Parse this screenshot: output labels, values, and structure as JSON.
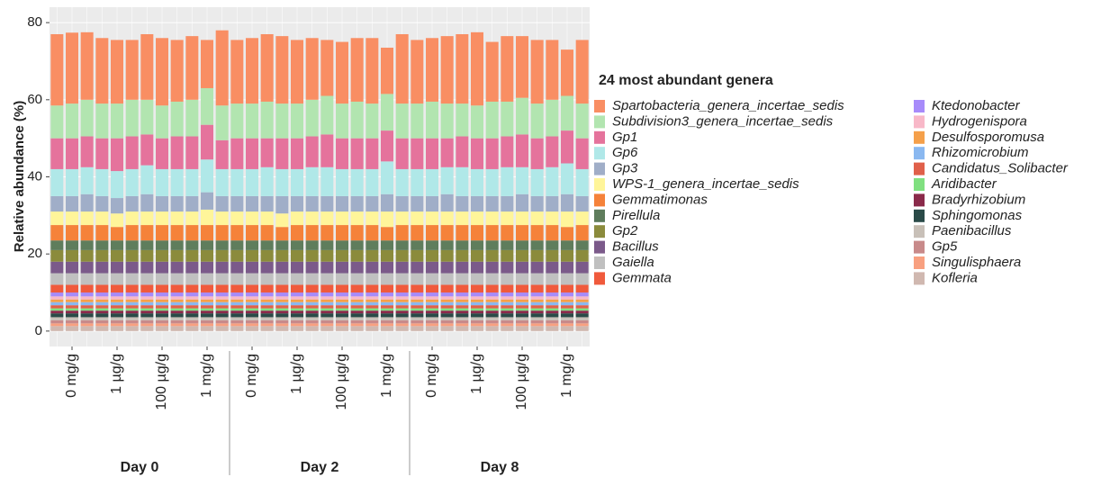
{
  "chart_data": {
    "type": "stacked_bar",
    "y_label": "Relative abundance (%)",
    "legend_title": "24 most abundant genera",
    "categories": [
      null,
      "0 mg/g",
      null,
      null,
      "1 µg/g",
      null,
      null,
      "100 µg/g",
      null,
      null,
      "1 mg/g",
      null,
      null,
      "0 mg/g",
      null,
      null,
      "1 µg/g",
      null,
      null,
      "100 µg/g",
      null,
      null,
      "1 mg/g",
      null,
      null,
      "0 mg/g",
      null,
      null,
      "1 µg/g",
      null,
      null,
      "100 µg/g",
      null,
      null,
      "1 mg/g",
      null
    ],
    "groups": [
      "Day 0",
      "Day 2",
      "Day 8"
    ],
    "ylim": [
      -4,
      84
    ],
    "yticks": [
      0,
      20,
      40,
      60,
      80
    ],
    "grid": true,
    "series": [
      {
        "name": "Spartobacteria_genera_incertae_sedis",
        "color": "#f98e63",
        "values": [
          18.5,
          18.4,
          17.5,
          17,
          16.5,
          15.5,
          17,
          17.5,
          16,
          16.5,
          12.5,
          19.5,
          16.5,
          17,
          17.5,
          17.5,
          16.5,
          16,
          14.5,
          16,
          16.5,
          17,
          12,
          18,
          16.5,
          16.5,
          17.5,
          18,
          19,
          15.5,
          17,
          16,
          16.5,
          15.5,
          12,
          16.5
        ]
      },
      {
        "name": "Subdivision3_genera_incertae_sedis",
        "color": "#b2e5b0",
        "values": [
          8.5,
          9,
          9.5,
          9,
          9,
          9.5,
          9,
          8.5,
          9,
          9.5,
          9.5,
          9,
          9,
          9,
          9.5,
          9,
          9,
          9.5,
          10,
          9,
          9.5,
          9,
          9.5,
          9,
          9,
          9.5,
          9,
          8.5,
          8.5,
          9.5,
          9,
          9.5,
          9,
          9.5,
          9,
          9
        ]
      },
      {
        "name": "Gp1",
        "color": "#e5739c",
        "values": [
          8,
          8,
          8,
          8,
          8.5,
          8.5,
          8,
          8,
          8.5,
          8.5,
          9,
          7.5,
          8,
          8,
          7.5,
          8,
          8,
          8,
          8.5,
          8,
          8,
          8,
          8,
          8,
          8,
          8,
          7.5,
          8,
          8,
          8,
          8,
          8.5,
          8,
          8,
          8.5,
          8
        ]
      },
      {
        "name": "Gp6",
        "color": "#b0e8e8",
        "values": [
          7,
          7,
          7,
          7,
          7,
          7,
          7.5,
          7,
          7,
          7,
          8.5,
          7,
          7,
          7,
          7.5,
          7,
          7,
          7.5,
          7.5,
          7,
          7,
          7,
          8.5,
          7,
          7,
          7,
          7,
          7.5,
          7,
          7,
          7.5,
          7,
          7,
          7.5,
          8,
          7
        ]
      },
      {
        "name": "Gp3",
        "color": "#a0aec8",
        "values": [
          4,
          4,
          4.5,
          4,
          4,
          4,
          4.5,
          4,
          4,
          4,
          4.5,
          4,
          4,
          4,
          4,
          4.5,
          4,
          4,
          4,
          4,
          4,
          4,
          4.5,
          4,
          4,
          4,
          4.5,
          4,
          4,
          4,
          4,
          4.5,
          4,
          4,
          4.5,
          4
        ]
      },
      {
        "name": "WPS-1_genera_incertae_sedis",
        "color": "#fff59a",
        "values": [
          3.5,
          3.5,
          3.5,
          3.5,
          3.5,
          3.5,
          3.5,
          3.5,
          3.5,
          3.5,
          4,
          3.5,
          3.5,
          3.5,
          3.5,
          3.5,
          3.5,
          3.5,
          3.5,
          3.5,
          3.5,
          3.5,
          4,
          3.5,
          3.5,
          3.5,
          3.5,
          3.5,
          3.5,
          3.5,
          3.5,
          3.5,
          3.5,
          3.5,
          4,
          3.5
        ]
      },
      {
        "name": "Gemmatimonas",
        "color": "#f5823a",
        "values": [
          4,
          4,
          4,
          4,
          3.5,
          4,
          4,
          4,
          4,
          4,
          4,
          4,
          4,
          4,
          4,
          3.5,
          4,
          4,
          4,
          4,
          4,
          4,
          3.5,
          4,
          4,
          4,
          4,
          4,
          4,
          4,
          4,
          4,
          4,
          4,
          3.5,
          4
        ]
      },
      {
        "name": "Pirellula",
        "color": "#5f7d5c",
        "values": [
          2.5,
          2.5,
          2.5,
          2.5,
          2.5,
          2.5,
          2.5,
          2.5,
          2.5,
          2.5,
          2.5,
          2.5,
          2.5,
          2.5,
          2.5,
          2.5,
          2.5,
          2.5,
          2.5,
          2.5,
          2.5,
          2.5,
          2.5,
          2.5,
          2.5,
          2.5,
          2.5,
          2.5,
          2.5,
          2.5,
          2.5,
          2.5,
          2.5,
          2.5,
          2.5,
          2.5
        ]
      },
      {
        "name": "Gp2",
        "color": "#8b8b3c",
        "values": [
          3,
          3,
          3,
          3,
          3,
          3,
          3,
          3,
          3,
          3,
          3,
          3,
          3,
          3,
          3,
          3,
          3,
          3,
          3,
          3,
          3,
          3,
          3,
          3,
          3,
          3,
          3,
          3,
          3,
          3,
          3,
          3,
          3,
          3,
          3,
          3
        ]
      },
      {
        "name": "Bacillus",
        "color": "#7b5a8a",
        "values": [
          3,
          3,
          3,
          3,
          3,
          3,
          3,
          3,
          3,
          3,
          3,
          3,
          3,
          3,
          3,
          3,
          3,
          3,
          3,
          3,
          3,
          3,
          3,
          3,
          3,
          3,
          3,
          3,
          3,
          3,
          3,
          3,
          3,
          3,
          3,
          3
        ]
      },
      {
        "name": "Gaiella",
        "color": "#c0c0c0",
        "values": [
          3,
          3,
          3,
          3,
          3,
          3,
          3,
          3,
          3,
          3,
          3,
          3,
          3,
          3,
          3,
          3,
          3,
          3,
          3,
          3,
          3,
          3,
          3,
          3,
          3,
          3,
          3,
          3,
          3,
          3,
          3,
          3,
          3,
          3,
          3,
          3
        ]
      },
      {
        "name": "Gemmata",
        "color": "#f05a3c",
        "values": [
          2,
          2,
          2,
          2,
          2,
          2,
          2,
          2,
          2,
          2,
          2,
          2,
          2,
          2,
          2,
          2,
          2,
          2,
          2,
          2,
          2,
          2,
          2,
          2,
          2,
          2,
          2,
          2,
          2,
          2,
          2,
          2,
          2,
          2,
          2,
          2
        ]
      },
      {
        "name": "Ktedonobacter",
        "color": "#a78bfa",
        "values": [
          1,
          1,
          1,
          1,
          1,
          1,
          1,
          1,
          1,
          1,
          1,
          1,
          1,
          1,
          1,
          1,
          1,
          1,
          1,
          1,
          1,
          1,
          1,
          1,
          1,
          1,
          1,
          1,
          1,
          1,
          1,
          1,
          1,
          1,
          1,
          1
        ]
      },
      {
        "name": "Hydrogenispora",
        "color": "#f8b8c8",
        "values": [
          0.8,
          0.8,
          0.8,
          0.8,
          0.8,
          0.8,
          0.8,
          0.8,
          0.8,
          0.8,
          0.8,
          0.8,
          0.8,
          0.8,
          0.8,
          0.8,
          0.8,
          0.8,
          0.8,
          0.8,
          0.8,
          0.8,
          0.8,
          0.8,
          0.8,
          0.8,
          0.8,
          0.8,
          0.8,
          0.8,
          0.8,
          0.8,
          0.8,
          0.8,
          0.8,
          0.8
        ]
      },
      {
        "name": "Desulfosporomusa",
        "color": "#f5a04a",
        "values": [
          0.7,
          0.7,
          0.7,
          0.7,
          0.7,
          0.7,
          0.7,
          0.7,
          0.7,
          0.7,
          0.7,
          0.7,
          0.7,
          0.7,
          0.7,
          0.7,
          0.7,
          0.7,
          0.7,
          0.7,
          0.7,
          0.7,
          0.7,
          0.7,
          0.7,
          0.7,
          0.7,
          0.7,
          0.7,
          0.7,
          0.7,
          0.7,
          0.7,
          0.7,
          0.7,
          0.7
        ]
      },
      {
        "name": "Rhizomicrobium",
        "color": "#8ab8f0",
        "values": [
          0.8,
          0.8,
          0.8,
          0.8,
          0.8,
          0.8,
          0.8,
          0.8,
          0.8,
          0.8,
          0.8,
          0.8,
          0.8,
          0.8,
          0.8,
          0.8,
          0.8,
          0.8,
          0.8,
          0.8,
          0.8,
          0.8,
          0.8,
          0.8,
          0.8,
          0.8,
          0.8,
          0.8,
          0.8,
          0.8,
          0.8,
          0.8,
          0.8,
          0.8,
          0.8,
          0.8
        ]
      },
      {
        "name": "Candidatus_Solibacter",
        "color": "#e0604a",
        "values": [
          0.8,
          0.8,
          0.8,
          0.8,
          0.8,
          0.8,
          0.8,
          0.8,
          0.8,
          0.8,
          0.8,
          0.8,
          0.8,
          0.8,
          0.8,
          0.8,
          0.8,
          0.8,
          0.8,
          0.8,
          0.8,
          0.8,
          0.8,
          0.8,
          0.8,
          0.8,
          0.8,
          0.8,
          0.8,
          0.8,
          0.8,
          0.8,
          0.8,
          0.8,
          0.8,
          0.8
        ]
      },
      {
        "name": "Aridibacter",
        "color": "#80e080",
        "values": [
          0.6,
          0.6,
          0.6,
          0.6,
          0.6,
          0.6,
          0.6,
          0.6,
          0.6,
          0.6,
          0.6,
          0.6,
          0.6,
          0.6,
          0.6,
          0.6,
          0.6,
          0.6,
          0.6,
          0.6,
          0.6,
          0.6,
          0.6,
          0.6,
          0.6,
          0.6,
          0.6,
          0.6,
          0.6,
          0.6,
          0.6,
          0.6,
          0.6,
          0.6,
          0.6,
          0.6
        ]
      },
      {
        "name": "Bradyrhizobium",
        "color": "#8a2a4a",
        "values": [
          0.7,
          0.7,
          0.7,
          0.7,
          0.7,
          0.7,
          0.7,
          0.7,
          0.7,
          0.7,
          0.7,
          0.7,
          0.7,
          0.7,
          0.7,
          0.7,
          0.7,
          0.7,
          0.7,
          0.7,
          0.7,
          0.7,
          0.7,
          0.7,
          0.7,
          0.7,
          0.7,
          0.7,
          0.7,
          0.7,
          0.7,
          0.7,
          0.7,
          0.7,
          0.7,
          0.7
        ]
      },
      {
        "name": "Sphingomonas",
        "color": "#2a4a48",
        "values": [
          1,
          1,
          1,
          1,
          1,
          1,
          1,
          1,
          1,
          1,
          1,
          1,
          1,
          1,
          1,
          1,
          1,
          1,
          1,
          1,
          1,
          1,
          1,
          1,
          1,
          1,
          1,
          1,
          1,
          1,
          1,
          1,
          1,
          1,
          1,
          1
        ]
      },
      {
        "name": "Paenibacillus",
        "color": "#c8c0b8",
        "values": [
          0.8,
          0.8,
          0.8,
          0.8,
          0.8,
          0.8,
          0.8,
          0.8,
          0.8,
          0.8,
          0.8,
          0.8,
          0.8,
          0.8,
          0.8,
          0.8,
          0.8,
          0.8,
          0.8,
          0.8,
          0.8,
          0.8,
          0.8,
          0.8,
          0.8,
          0.8,
          0.8,
          0.8,
          0.8,
          0.8,
          0.8,
          0.8,
          0.8,
          0.8,
          0.8,
          0.8
        ]
      },
      {
        "name": "Gp5",
        "color": "#c88a8a",
        "values": [
          0.8,
          0.8,
          0.8,
          0.8,
          0.8,
          0.8,
          0.8,
          0.8,
          0.8,
          0.8,
          0.8,
          0.8,
          0.8,
          0.8,
          0.8,
          0.8,
          0.8,
          0.8,
          0.8,
          0.8,
          0.8,
          0.8,
          0.8,
          0.8,
          0.8,
          0.8,
          0.8,
          0.8,
          0.8,
          0.8,
          0.8,
          0.8,
          0.8,
          0.8,
          0.8,
          0.8
        ]
      },
      {
        "name": "Singulisphaera",
        "color": "#f8a080",
        "values": [
          0.7,
          0.7,
          0.7,
          0.7,
          0.7,
          0.7,
          0.7,
          0.7,
          0.7,
          0.7,
          0.7,
          0.7,
          0.7,
          0.7,
          0.7,
          0.7,
          0.7,
          0.7,
          0.7,
          0.7,
          0.7,
          0.7,
          0.7,
          0.7,
          0.7,
          0.7,
          0.7,
          0.7,
          0.7,
          0.7,
          0.7,
          0.7,
          0.7,
          0.7,
          0.7,
          0.7
        ]
      },
      {
        "name": "Kofleria",
        "color": "#d0b8b0",
        "values": [
          1.3,
          1.3,
          1.3,
          1.3,
          1.3,
          1.3,
          1.3,
          1.3,
          1.3,
          1.3,
          1.3,
          1.3,
          1.3,
          1.3,
          1.3,
          1.3,
          1.3,
          1.3,
          1.3,
          1.3,
          1.3,
          1.3,
          1.3,
          1.3,
          1.3,
          1.3,
          1.3,
          1.3,
          1.3,
          1.3,
          1.3,
          1.3,
          1.3,
          1.3,
          1.3,
          1.3
        ]
      }
    ]
  }
}
